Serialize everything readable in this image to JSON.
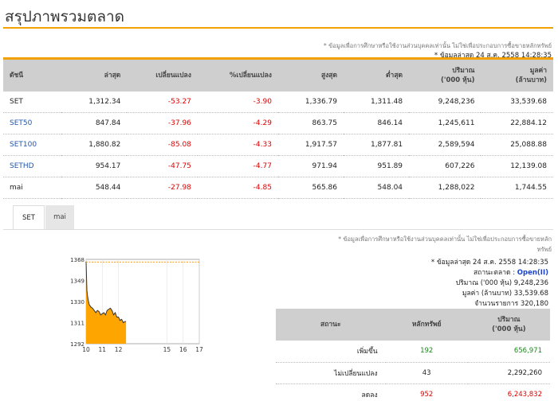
{
  "page": {
    "title": "สรุปภาพรวมตลาด"
  },
  "market": {
    "note": "* ข้อมูลเพื่อการศึกษาหรือใช้งานส่วนบุคคลเท่านั้น ไม่ใช่เพื่อประกอบการซื้อขายหลักทรัพย์",
    "updated": "* ข้อมูลล่าสุด 24 ส.ค. 2558 14:28:35",
    "headers": [
      "ดัชนี",
      "ล่าสุด",
      "เปลี่ยนแปลง",
      "%เปลี่ยนแปลง",
      "สูงสุด",
      "ต่ำสุด",
      "ปริมาณ\n('000 หุ้น)",
      "มูลค่า\n(ล้านบาท)"
    ],
    "rows": [
      {
        "name": "SET",
        "last": "1,312.34",
        "change": "-53.27",
        "pct": "-3.90",
        "high": "1,336.79",
        "low": "1,311.48",
        "volume": "9,248,236",
        "value": "33,539.68"
      },
      {
        "name": "SET50",
        "last": "847.84",
        "change": "-37.96",
        "pct": "-4.29",
        "high": "863.75",
        "low": "846.14",
        "volume": "1,245,611",
        "value": "22,884.12"
      },
      {
        "name": "SET100",
        "last": "1,880.82",
        "change": "-85.08",
        "pct": "-4.33",
        "high": "1,917.57",
        "low": "1,877.81",
        "volume": "2,589,594",
        "value": "25,088.88"
      },
      {
        "name": "SETHD",
        "last": "954.17",
        "change": "-47.75",
        "pct": "-4.77",
        "high": "971.94",
        "low": "951.89",
        "volume": "607,226",
        "value": "12,139.08"
      },
      {
        "name": "mai",
        "last": "548.44",
        "change": "-27.98",
        "pct": "-4.85",
        "high": "565.86",
        "low": "548.04",
        "volume": "1,288,022",
        "value": "1,744.55"
      }
    ]
  },
  "tabs": [
    {
      "label": "SET"
    },
    {
      "label": "mai"
    }
  ],
  "summary": {
    "note_line1": "* ข้อมูลเพื่อการศึกษาหรือใช้งานส่วนบุคคลเท่านั้น ไม่ใช่เพื่อประกอบการซื้อขายหลัก",
    "note_line2": "ทรัพย์",
    "updated": "* ข้อมูลล่าสุด 24 ส.ค. 2558 14:28:35",
    "status_label": "สถานะตลาด :",
    "status_value": "Open(II)",
    "volume_label": "ปริมาณ ('000 หุ้น)",
    "volume_value": "9,248,236",
    "value_label": "มูลค่า (ล้านบาท)",
    "value_value": "33,539.68",
    "trades_label": "จำนวนรายการ",
    "trades_value": "320,180",
    "headers": [
      "สถานะ",
      "หลักทรัพย์",
      "ปริมาณ\n('000 หุ้น)"
    ],
    "rows": [
      {
        "status": "เพิ่มขึ้น",
        "count": "192",
        "volume": "656,971"
      },
      {
        "status": "ไม่เปลี่ยนแปลง",
        "count": "43",
        "volume": "2,292,260"
      },
      {
        "status": "ลดลง",
        "count": "952",
        "volume": "6,243,832"
      }
    ]
  },
  "chart_data": {
    "type": "area",
    "y_ticks": [
      "1368",
      "1349",
      "1330",
      "1311",
      "1292"
    ],
    "x_ticks": [
      "10",
      "11",
      "12",
      "15",
      "16",
      "17"
    ],
    "ylim": [
      1292,
      1368
    ],
    "xlim": [
      10,
      17
    ],
    "reference_line": 1365.6,
    "x": [
      10.0,
      10.05,
      10.1,
      10.15,
      10.2,
      10.3,
      10.4,
      10.5,
      10.6,
      10.7,
      10.8,
      10.9,
      11.0,
      11.1,
      11.2,
      11.3,
      11.4,
      11.5,
      11.6,
      11.7,
      11.8,
      11.9,
      12.0,
      12.1,
      12.2,
      12.3,
      12.4,
      12.47
    ],
    "values": [
      1366,
      1340,
      1334,
      1330,
      1327,
      1325,
      1324,
      1322,
      1320,
      1322,
      1321,
      1318,
      1319,
      1320,
      1318,
      1322,
      1323,
      1324,
      1322,
      1318,
      1320,
      1316,
      1316,
      1313,
      1314,
      1311,
      1312,
      1312
    ],
    "colors": {
      "fill": "#ffa500",
      "line": "#333333",
      "reference": "#ff9900"
    }
  }
}
